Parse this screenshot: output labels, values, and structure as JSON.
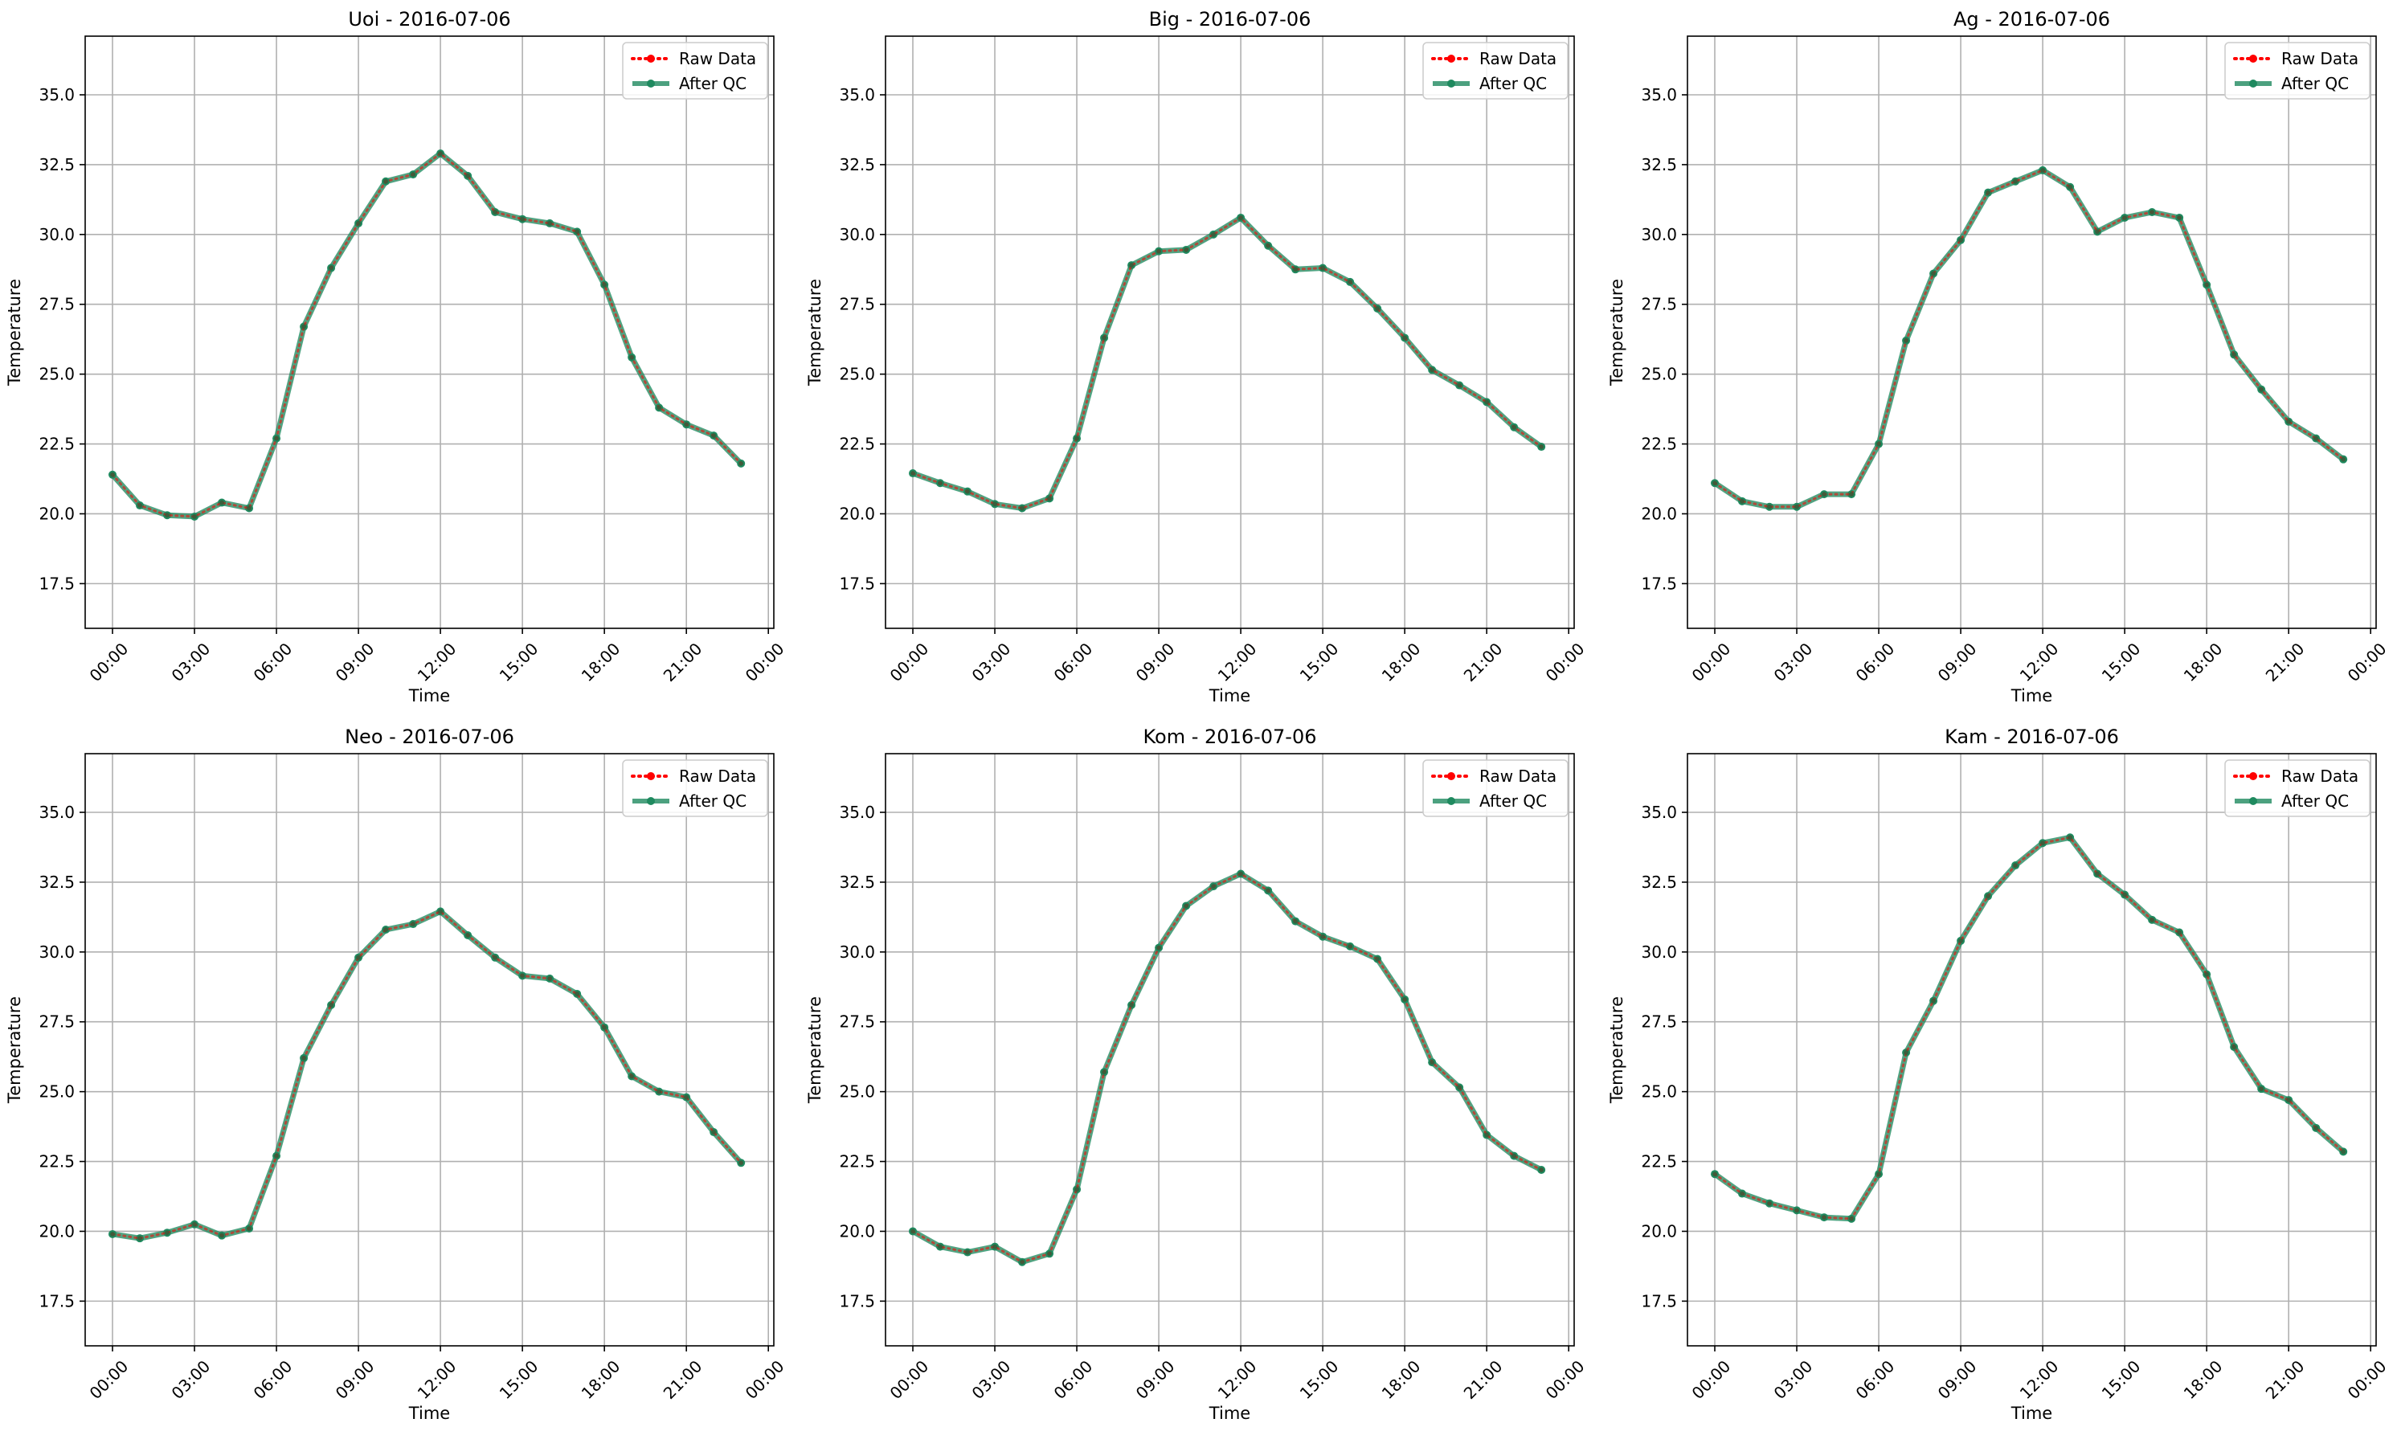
{
  "chart_data": [
    {
      "type": "line",
      "title": "Uoi - 2016-07-06",
      "xlabel": "Time",
      "ylabel": "Temperature",
      "x_tick_labels": [
        "00:00",
        "03:00",
        "06:00",
        "09:00",
        "12:00",
        "15:00",
        "18:00",
        "21:00",
        "00:00"
      ],
      "y_ticks": [
        17.5,
        20.0,
        22.5,
        25.0,
        27.5,
        30.0,
        32.5,
        35.0
      ],
      "ylim": [
        15.9,
        37.1
      ],
      "xlim_hours": [
        -1.0,
        24.2
      ],
      "grid": true,
      "legend_position": "top-right",
      "x_hours": [
        0,
        1,
        2,
        3,
        4,
        5,
        6,
        7,
        8,
        9,
        10,
        11,
        12,
        13,
        14,
        15,
        16,
        17,
        18,
        19,
        20,
        21,
        22,
        23
      ],
      "series": [
        {
          "name": "Raw Data",
          "values": [
            21.4,
            20.3,
            19.95,
            19.9,
            20.4,
            20.2,
            22.7,
            26.7,
            28.8,
            30.4,
            31.9,
            32.15,
            32.9,
            32.1,
            30.8,
            30.55,
            30.4,
            30.1,
            28.2,
            25.6,
            23.8,
            23.2,
            22.8,
            21.8
          ]
        },
        {
          "name": "After QC",
          "values": [
            21.4,
            20.3,
            19.95,
            19.9,
            20.4,
            20.2,
            22.7,
            26.7,
            28.8,
            30.4,
            31.9,
            32.15,
            32.9,
            32.1,
            30.8,
            30.55,
            30.4,
            30.1,
            28.2,
            25.6,
            23.8,
            23.2,
            22.8,
            21.8
          ]
        }
      ]
    },
    {
      "type": "line",
      "title": "Big - 2016-07-06",
      "xlabel": "Time",
      "ylabel": "Temperature",
      "x_tick_labels": [
        "00:00",
        "03:00",
        "06:00",
        "09:00",
        "12:00",
        "15:00",
        "18:00",
        "21:00",
        "00:00"
      ],
      "y_ticks": [
        17.5,
        20.0,
        22.5,
        25.0,
        27.5,
        30.0,
        32.5,
        35.0
      ],
      "ylim": [
        15.9,
        37.1
      ],
      "xlim_hours": [
        -1.0,
        24.2
      ],
      "grid": true,
      "legend_position": "top-right",
      "x_hours": [
        0,
        1,
        2,
        3,
        4,
        5,
        6,
        7,
        8,
        9,
        10,
        11,
        12,
        13,
        14,
        15,
        16,
        17,
        18,
        19,
        20,
        21,
        22,
        23
      ],
      "series": [
        {
          "name": "Raw Data",
          "values": [
            21.45,
            21.1,
            20.8,
            20.35,
            20.2,
            20.55,
            22.7,
            26.3,
            28.9,
            29.4,
            29.45,
            30.0,
            30.6,
            29.6,
            28.75,
            28.8,
            28.3,
            27.35,
            26.3,
            25.15,
            24.6,
            24.0,
            23.1,
            22.4
          ]
        },
        {
          "name": "After QC",
          "values": [
            21.45,
            21.1,
            20.8,
            20.35,
            20.2,
            20.55,
            22.7,
            26.3,
            28.9,
            29.4,
            29.45,
            30.0,
            30.6,
            29.6,
            28.75,
            28.8,
            28.3,
            27.35,
            26.3,
            25.15,
            24.6,
            24.0,
            23.1,
            22.4
          ]
        }
      ]
    },
    {
      "type": "line",
      "title": "Ag - 2016-07-06",
      "xlabel": "Time",
      "ylabel": "Temperature",
      "x_tick_labels": [
        "00:00",
        "03:00",
        "06:00",
        "09:00",
        "12:00",
        "15:00",
        "18:00",
        "21:00",
        "00:00"
      ],
      "y_ticks": [
        17.5,
        20.0,
        22.5,
        25.0,
        27.5,
        30.0,
        32.5,
        35.0
      ],
      "ylim": [
        15.9,
        37.1
      ],
      "xlim_hours": [
        -1.0,
        24.2
      ],
      "grid": true,
      "legend_position": "top-right",
      "x_hours": [
        0,
        1,
        2,
        3,
        4,
        5,
        6,
        7,
        8,
        9,
        10,
        11,
        12,
        13,
        14,
        15,
        16,
        17,
        18,
        19,
        20,
        21,
        22,
        23
      ],
      "series": [
        {
          "name": "Raw Data",
          "values": [
            21.1,
            20.45,
            20.25,
            20.25,
            20.7,
            20.7,
            22.5,
            26.2,
            28.6,
            29.8,
            31.5,
            31.9,
            32.3,
            31.7,
            30.1,
            30.6,
            30.8,
            30.6,
            28.2,
            25.7,
            24.45,
            23.3,
            22.7,
            21.95
          ]
        },
        {
          "name": "After QC",
          "values": [
            21.1,
            20.45,
            20.25,
            20.25,
            20.7,
            20.7,
            22.5,
            26.2,
            28.6,
            29.8,
            31.5,
            31.9,
            32.3,
            31.7,
            30.1,
            30.6,
            30.8,
            30.6,
            28.2,
            25.7,
            24.45,
            23.3,
            22.7,
            21.95
          ]
        }
      ]
    },
    {
      "type": "line",
      "title": "Neo - 2016-07-06",
      "xlabel": "Time",
      "ylabel": "Temperature",
      "x_tick_labels": [
        "00:00",
        "03:00",
        "06:00",
        "09:00",
        "12:00",
        "15:00",
        "18:00",
        "21:00",
        "00:00"
      ],
      "y_ticks": [
        17.5,
        20.0,
        22.5,
        25.0,
        27.5,
        30.0,
        32.5,
        35.0
      ],
      "ylim": [
        15.9,
        37.1
      ],
      "xlim_hours": [
        -1.0,
        24.2
      ],
      "grid": true,
      "legend_position": "top-right",
      "x_hours": [
        0,
        1,
        2,
        3,
        4,
        5,
        6,
        7,
        8,
        9,
        10,
        11,
        12,
        13,
        14,
        15,
        16,
        17,
        18,
        19,
        20,
        21,
        22,
        23
      ],
      "series": [
        {
          "name": "Raw Data",
          "values": [
            19.9,
            19.75,
            19.95,
            20.25,
            19.85,
            20.1,
            22.7,
            26.2,
            28.1,
            29.8,
            30.8,
            31.0,
            31.45,
            30.6,
            29.8,
            29.15,
            29.05,
            28.5,
            27.3,
            25.55,
            25.0,
            24.8,
            23.55,
            22.45
          ]
        },
        {
          "name": "After QC",
          "values": [
            19.9,
            19.75,
            19.95,
            20.25,
            19.85,
            20.1,
            22.7,
            26.2,
            28.1,
            29.8,
            30.8,
            31.0,
            31.45,
            30.6,
            29.8,
            29.15,
            29.05,
            28.5,
            27.3,
            25.55,
            25.0,
            24.8,
            23.55,
            22.45
          ]
        }
      ]
    },
    {
      "type": "line",
      "title": "Kom - 2016-07-06",
      "xlabel": "Time",
      "ylabel": "Temperature",
      "x_tick_labels": [
        "00:00",
        "03:00",
        "06:00",
        "09:00",
        "12:00",
        "15:00",
        "18:00",
        "21:00",
        "00:00"
      ],
      "y_ticks": [
        17.5,
        20.0,
        22.5,
        25.0,
        27.5,
        30.0,
        32.5,
        35.0
      ],
      "ylim": [
        15.9,
        37.1
      ],
      "xlim_hours": [
        -1.0,
        24.2
      ],
      "grid": true,
      "legend_position": "top-right",
      "x_hours": [
        0,
        1,
        2,
        3,
        4,
        5,
        6,
        7,
        8,
        9,
        10,
        11,
        12,
        13,
        14,
        15,
        16,
        17,
        18,
        19,
        20,
        21,
        22,
        23
      ],
      "series": [
        {
          "name": "Raw Data",
          "values": [
            20.0,
            19.45,
            19.25,
            19.45,
            18.9,
            19.2,
            21.5,
            25.7,
            28.1,
            30.15,
            31.65,
            32.35,
            32.8,
            32.2,
            31.1,
            30.55,
            30.2,
            29.75,
            28.3,
            26.05,
            25.15,
            23.45,
            22.7,
            22.2
          ]
        },
        {
          "name": "After QC",
          "values": [
            20.0,
            19.45,
            19.25,
            19.45,
            18.9,
            19.2,
            21.5,
            25.7,
            28.1,
            30.15,
            31.65,
            32.35,
            32.8,
            32.2,
            31.1,
            30.55,
            30.2,
            29.75,
            28.3,
            26.05,
            25.15,
            23.45,
            22.7,
            22.2
          ]
        }
      ]
    },
    {
      "type": "line",
      "title": "Kam - 2016-07-06",
      "xlabel": "Time",
      "ylabel": "Temperature",
      "x_tick_labels": [
        "00:00",
        "03:00",
        "06:00",
        "09:00",
        "12:00",
        "15:00",
        "18:00",
        "21:00",
        "00:00"
      ],
      "y_ticks": [
        17.5,
        20.0,
        22.5,
        25.0,
        27.5,
        30.0,
        32.5,
        35.0
      ],
      "ylim": [
        15.9,
        37.1
      ],
      "xlim_hours": [
        -1.0,
        24.2
      ],
      "grid": true,
      "legend_position": "top-right",
      "x_hours": [
        0,
        1,
        2,
        3,
        4,
        5,
        6,
        7,
        8,
        9,
        10,
        11,
        12,
        13,
        14,
        15,
        16,
        17,
        18,
        19,
        20,
        21,
        22,
        23
      ],
      "series": [
        {
          "name": "Raw Data",
          "values": [
            22.05,
            21.35,
            21.0,
            20.75,
            20.5,
            20.45,
            22.05,
            26.4,
            28.25,
            30.4,
            32.0,
            33.1,
            33.9,
            34.1,
            32.8,
            32.05,
            31.15,
            30.7,
            29.2,
            26.6,
            25.1,
            24.7,
            23.7,
            22.85
          ]
        },
        {
          "name": "After QC",
          "values": [
            22.05,
            21.35,
            21.0,
            20.75,
            20.5,
            20.45,
            22.05,
            26.4,
            28.25,
            30.4,
            32.0,
            33.1,
            33.9,
            34.1,
            32.8,
            32.05,
            31.15,
            30.7,
            29.2,
            26.6,
            25.1,
            24.7,
            23.7,
            22.85
          ]
        }
      ]
    }
  ],
  "colors": {
    "raw": "#ff0000",
    "qc": "#1f8a5f",
    "grid": "#b0b0b0",
    "axis": "#000000",
    "legend_border": "#cccccc"
  }
}
